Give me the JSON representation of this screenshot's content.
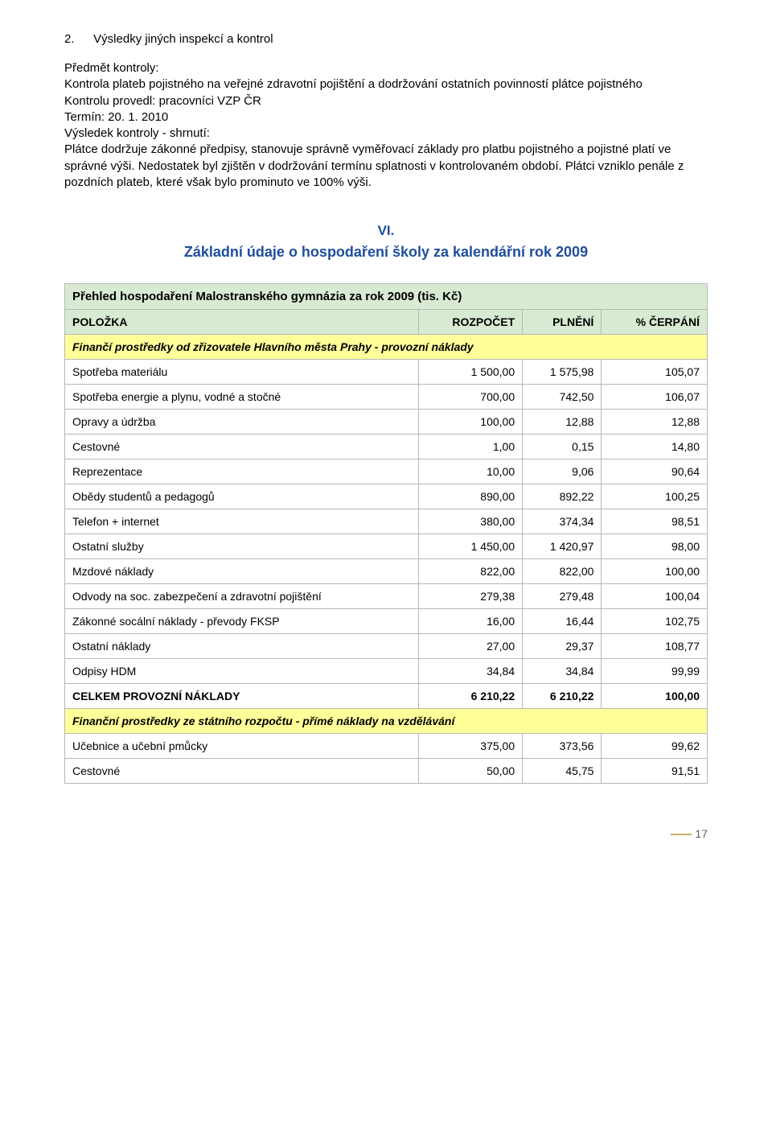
{
  "inspection": {
    "num": "2.",
    "heading": "Výsledky jiných inspekcí a kontrol",
    "subject_label": "Předmět kontroly:",
    "subject": "Kontrola plateb pojistného na veřejné zdravotní pojištění a dodržování ostatních povinností plátce pojistného",
    "performed": "Kontrolu provedl: pracovníci VZP ČR",
    "term": "Termín: 20. 1. 2010",
    "result_label": "Výsledek kontroly - shrnutí:",
    "result": "Plátce dodržuje zákonné předpisy, stanovuje správně vyměřovací základy pro platbu pojistného a pojistné platí ve správné výši. Nedostatek byl zjištěn v dodržování termínu splatnosti v kontrolovaném období. Plátci vzniklo penále z pozdních plateb, které však bylo prominuto ve 100% výši."
  },
  "section": {
    "roman": "VI.",
    "title": "Základní údaje o hospodaření školy za kalendářní rok 2009"
  },
  "table": {
    "title": "Přehled hospodaření Malostranského gymnázia za rok 2009 (tis. Kč)",
    "headers": {
      "col1": "POLOŽKA",
      "col2": "ROZPOČET",
      "col3": "PLNĚNÍ",
      "col4": "% ČERPÁNÍ"
    },
    "section1": "Finančí prostředky od zřizovatele Hlavního města Prahy - provozní náklady",
    "rows1": [
      {
        "label": "Spotřeba materiálu",
        "budget": "1 500,00",
        "actual": "1 575,98",
        "pct": "105,07"
      },
      {
        "label": "Spotřeba energie a plynu, vodné a stočné",
        "budget": "700,00",
        "actual": "742,50",
        "pct": "106,07"
      },
      {
        "label": "Opravy a údržba",
        "budget": "100,00",
        "actual": "12,88",
        "pct": "12,88"
      },
      {
        "label": "Cestovné",
        "budget": "1,00",
        "actual": "0,15",
        "pct": "14,80"
      },
      {
        "label": "Reprezentace",
        "budget": "10,00",
        "actual": "9,06",
        "pct": "90,64"
      },
      {
        "label": "Obědy studentů a pedagogů",
        "budget": "890,00",
        "actual": "892,22",
        "pct": "100,25"
      },
      {
        "label": "Telefon + internet",
        "budget": "380,00",
        "actual": "374,34",
        "pct": "98,51"
      },
      {
        "label": "Ostatní služby",
        "budget": "1 450,00",
        "actual": "1 420,97",
        "pct": "98,00"
      },
      {
        "label": "Mzdové náklady",
        "budget": "822,00",
        "actual": "822,00",
        "pct": "100,00"
      },
      {
        "label": "Odvody na soc. zabezpečení a zdravotní pojištění",
        "budget": "279,38",
        "actual": "279,48",
        "pct": "100,04"
      },
      {
        "label": "Zákonné socální náklady - převody FKSP",
        "budget": "16,00",
        "actual": "16,44",
        "pct": "102,75"
      },
      {
        "label": "Ostatní náklady",
        "budget": "27,00",
        "actual": "29,37",
        "pct": "108,77"
      },
      {
        "label": "Odpisy HDM",
        "budget": "34,84",
        "actual": "34,84",
        "pct": "99,99"
      }
    ],
    "total1": {
      "label": "CELKEM PROVOZNÍ NÁKLADY",
      "budget": "6 210,22",
      "actual": "6 210,22",
      "pct": "100,00"
    },
    "section2": "Finanční prostředky ze státního rozpočtu - přímé náklady na vzdělávání",
    "rows2": [
      {
        "label": "Učebnice a učební pmůcky",
        "budget": "375,00",
        "actual": "373,56",
        "pct": "99,62"
      },
      {
        "label": "Cestovné",
        "budget": "50,00",
        "actual": "45,75",
        "pct": "91,51"
      }
    ]
  },
  "page": "17"
}
